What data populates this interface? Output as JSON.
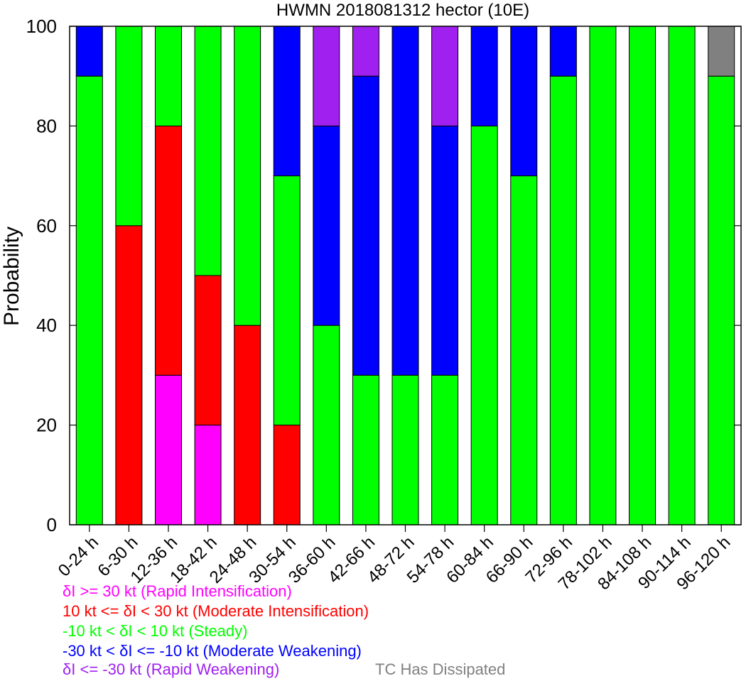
{
  "chart_data": {
    "type": "bar",
    "stacked": true,
    "title": "HWMN 2018081312 hector (10E)",
    "xlabel": "",
    "ylabel": "Probability",
    "ylim": [
      0,
      100
    ],
    "yticks": [
      "0",
      "20",
      "40",
      "60",
      "80",
      "100"
    ],
    "categories": [
      "0-24 h",
      "6-30 h",
      "12-36 h",
      "18-42 h",
      "24-48 h",
      "30-54 h",
      "36-60 h",
      "42-66 h",
      "48-72 h",
      "54-78 h",
      "60-84 h",
      "66-90 h",
      "72-96 h",
      "78-102 h",
      "84-108 h",
      "90-114 h",
      "96-120 h"
    ],
    "series": [
      {
        "name": "δI >= 30 kt (Rapid Intensification)",
        "color": "#ff00ff",
        "values": [
          0,
          0,
          30,
          20,
          0,
          0,
          0,
          0,
          0,
          0,
          0,
          0,
          0,
          0,
          0,
          0,
          0
        ]
      },
      {
        "name": "10 kt <= δI < 30 kt (Moderate Intensification)",
        "color": "#ff0000",
        "values": [
          0,
          60,
          50,
          30,
          40,
          20,
          0,
          0,
          0,
          0,
          0,
          0,
          0,
          0,
          0,
          0,
          0
        ]
      },
      {
        "name": "-10 kt < δI < 10 kt (Steady)",
        "color": "#00ff00",
        "values": [
          90,
          40,
          20,
          50,
          60,
          50,
          40,
          30,
          30,
          30,
          80,
          70,
          90,
          100,
          100,
          100,
          90
        ]
      },
      {
        "name": "-30 kt < δI <= -10 kt (Moderate Weakening)",
        "color": "#0000ff",
        "values": [
          10,
          0,
          0,
          0,
          0,
          30,
          40,
          60,
          70,
          50,
          20,
          30,
          10,
          0,
          0,
          0,
          0
        ]
      },
      {
        "name": "δI <= -30 kt (Rapid Weakening)",
        "color": "#a020f0",
        "values": [
          0,
          0,
          0,
          0,
          0,
          0,
          20,
          10,
          0,
          20,
          0,
          0,
          0,
          0,
          0,
          0,
          0
        ]
      },
      {
        "name": "TC Has Dissipated",
        "color": "#808080",
        "values": [
          0,
          0,
          0,
          0,
          0,
          0,
          0,
          0,
          0,
          0,
          0,
          0,
          0,
          0,
          0,
          0,
          10
        ]
      }
    ],
    "grid": false,
    "legend_placement": "bottom-left"
  }
}
